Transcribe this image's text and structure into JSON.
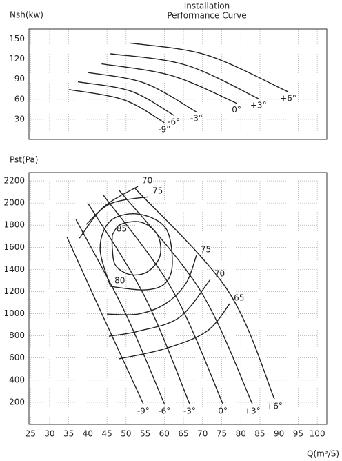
{
  "chart_data": [
    {
      "type": "line",
      "title": "Installation",
      "subtitle": "Performance Curve",
      "y_label": "Nsh(kw)",
      "color": "#222",
      "grid": true,
      "xlim": [
        24.6,
        102.5
      ],
      "xticks": [
        25,
        30,
        35,
        40,
        45,
        50,
        55,
        60,
        65,
        70,
        75,
        80,
        85,
        90,
        95,
        100
      ],
      "ylim": [
        0,
        165
      ],
      "yticks": [
        30,
        60,
        90,
        120,
        150
      ],
      "series": [
        {
          "name": "-9°",
          "x": [
            35.1,
            49.5,
            60.0
          ],
          "values": [
            74.5,
            59,
            25
          ]
        },
        {
          "name": "-6°",
          "x": [
            37.4,
            51.3,
            62.5
          ],
          "values": [
            86,
            72,
            36
          ]
        },
        {
          "name": "-3°",
          "x": [
            40.0,
            54.9,
            68.4
          ],
          "values": [
            100,
            84,
            41
          ]
        },
        {
          "name": "0°",
          "x": [
            43.6,
            62.1,
            78.9
          ],
          "values": [
            113,
            95,
            54
          ]
        },
        {
          "name": "+3°",
          "x": [
            45.9,
            65.7,
            84.6
          ],
          "values": [
            128,
            111,
            61
          ]
        },
        {
          "name": "+6°",
          "x": [
            51.0,
            71.1,
            92.4
          ],
          "values": [
            144,
            126,
            71
          ]
        }
      ]
    },
    {
      "type": "line",
      "y_label": "Pst(Pa)",
      "x_label": "Q(m³/S)",
      "color": "#222",
      "grid": true,
      "xlim": [
        24.6,
        102.5
      ],
      "xticks": [
        25,
        30,
        35,
        40,
        45,
        50,
        55,
        60,
        65,
        70,
        75,
        80,
        85,
        90,
        95,
        100
      ],
      "ylim": [
        0,
        2275
      ],
      "yticks": [
        200,
        400,
        600,
        800,
        1000,
        1200,
        1400,
        1600,
        1800,
        2000,
        2200
      ],
      "series": [
        {
          "name": "-9°",
          "x": [
            34.5,
            44.1,
            54.5
          ],
          "values": [
            1695,
            966,
            187
          ]
        },
        {
          "name": "-6°",
          "x": [
            36.9,
            49.5,
            60.0
          ],
          "values": [
            1850,
            1028,
            187
          ]
        },
        {
          "name": "-3°",
          "x": [
            40.1,
            54.9,
            66.6
          ],
          "values": [
            1994,
            1153,
            187
          ]
        },
        {
          "name": "0°",
          "x": [
            44.1,
            62.1,
            75.3
          ],
          "values": [
            2069,
            1215,
            187
          ]
        },
        {
          "name": "+3°",
          "x": [
            48.1,
            69.3,
            83.0
          ],
          "values": [
            2118,
            1215,
            187
          ]
        },
        {
          "name": "+6°",
          "x": [
            52.2,
            76.5,
            88.8
          ],
          "values": [
            2137,
            1215,
            230
          ]
        }
      ],
      "contours": [
        {
          "name": "85",
          "x": [
            46.4,
            48.6,
            54.0,
            58.2,
            58.9,
            55.8,
            51.3,
            47.3,
            46.4,
            46.4
          ],
          "values": [
            1713,
            1807,
            1826,
            1713,
            1526,
            1383,
            1352,
            1433,
            1589,
            1713
          ]
        },
        {
          "name": "80",
          "x": [
            45.9,
            43.2,
            45.9,
            53.1,
            60.3,
            62.1,
            60.3,
            54.9,
            45.9
          ],
          "values": [
            1246,
            1589,
            1838,
            1900,
            1776,
            1464,
            1277,
            1215,
            1246
          ]
        },
        {
          "name": "75",
          "x": [
            45.0,
            53.1,
            60.3,
            65.7,
            68.4
          ],
          "values": [
            997,
            997,
            1090,
            1277,
            1526
          ]
        },
        {
          "name": "75",
          "x": [
            39.6,
            45.9,
            55.8
          ],
          "values": [
            1807,
            1994,
            2056
          ]
        },
        {
          "name": "70",
          "x": [
            45.5,
            53.1,
            63.9,
            72.0
          ],
          "values": [
            797,
            841,
            966,
            1308
          ]
        },
        {
          "name": "70",
          "x": [
            37.8,
            44.1,
            53.1
          ],
          "values": [
            1682,
            1963,
            2150
          ]
        },
        {
          "name": "65",
          "x": [
            48.1,
            60.3,
            71.1,
            77.1
          ],
          "values": [
            592,
            685,
            841,
            1090
          ]
        }
      ]
    }
  ]
}
